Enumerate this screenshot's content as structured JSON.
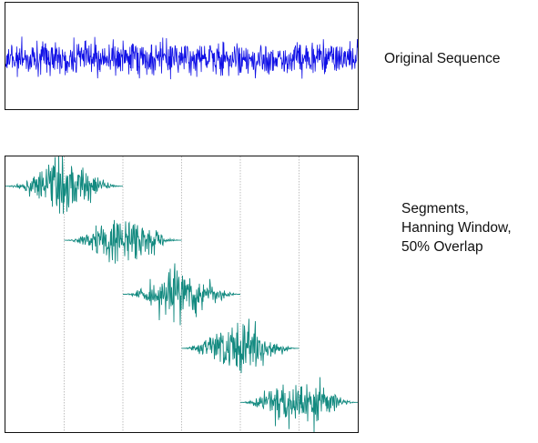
{
  "top": {
    "label": "Original Sequence",
    "color": "#1010e6"
  },
  "bottom": {
    "label_lines": [
      "Segments,",
      "Hanning Window,",
      "50% Overlap"
    ],
    "color": "#138a80",
    "segment_count": 5,
    "overlap_percent": 50,
    "window": "Hanning",
    "gridline_color": "#b0b0b0"
  }
}
